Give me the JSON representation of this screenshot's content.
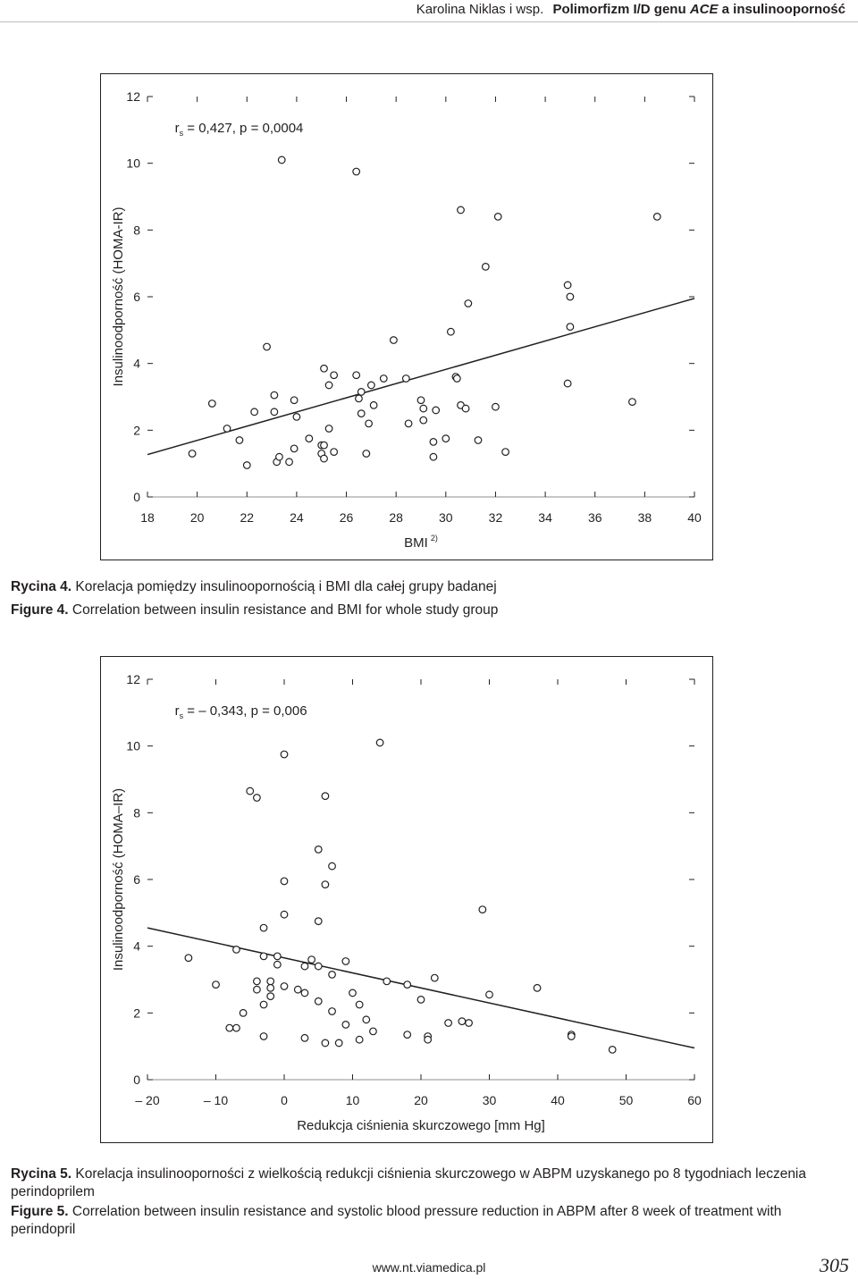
{
  "header": {
    "authors": "Karolina Niklas i wsp.",
    "title_prefix": "Polimorfizm I/D genu",
    "title_gene": "ACE",
    "title_suffix": "a insulinooporność"
  },
  "figure4": {
    "caption_pl_label": "Rycina 4.",
    "caption_pl_text": "Korelacja pomiędzy insulinoopornością i BMI dla całej grupy badanej",
    "caption_en_label": "Figure 4.",
    "caption_en_text": "Correlation between insulin resistance and BMI for whole study group"
  },
  "figure5": {
    "caption_pl_label": "Rycina 5.",
    "caption_pl_text": "Korelacja insulinooporności z wielkością redukcji ciśnienia skurczowego w ABPM uzyskanego po 8 tygodniach leczenia perindoprilem",
    "caption_en_label": "Figure 5.",
    "caption_en_text": "Correlation between insulin resistance and systolic blood pressure reduction in ABPM after 8 week of treatment with perindopril"
  },
  "chart_data": [
    {
      "type": "scatter",
      "annotation": {
        "r": "r",
        "sub": "s",
        "rest": " = 0,427, p = 0,0004"
      },
      "xlabel": "BMI",
      "xlabel_sup": "2)",
      "ylabel": "Insulinoodporność (HOMA-IR)",
      "xlim": [
        18,
        40
      ],
      "ylim": [
        0,
        12
      ],
      "xticks": [
        18,
        20,
        22,
        24,
        26,
        28,
        30,
        32,
        34,
        36,
        38,
        40
      ],
      "xtick_labels": [
        "18",
        "20",
        "22",
        "24",
        "26",
        "28",
        "30",
        "32",
        "34",
        "36",
        "38",
        "40"
      ],
      "yticks": [
        0,
        2,
        4,
        6,
        8,
        10,
        12
      ],
      "ytick_labels": [
        "0",
        "2",
        "4",
        "6",
        "8",
        "10",
        "12"
      ],
      "grid": false,
      "regression_line": {
        "x": [
          18,
          40
        ],
        "y": [
          1.27,
          5.95
        ]
      },
      "points": [
        [
          19.8,
          1.3
        ],
        [
          20.6,
          2.8
        ],
        [
          21.2,
          2.05
        ],
        [
          21.7,
          1.7
        ],
        [
          22.0,
          0.95
        ],
        [
          22.3,
          2.55
        ],
        [
          22.8,
          4.5
        ],
        [
          23.1,
          2.55
        ],
        [
          23.1,
          3.05
        ],
        [
          23.2,
          1.05
        ],
        [
          23.3,
          1.2
        ],
        [
          23.7,
          1.05
        ],
        [
          23.9,
          2.9
        ],
        [
          23.9,
          1.45
        ],
        [
          24.0,
          2.4
        ],
        [
          24.5,
          1.75
        ],
        [
          25.0,
          1.3
        ],
        [
          25.0,
          1.55
        ],
        [
          25.1,
          1.55
        ],
        [
          25.1,
          1.15
        ],
        [
          25.1,
          3.85
        ],
        [
          25.3,
          3.35
        ],
        [
          25.3,
          2.05
        ],
        [
          25.5,
          3.65
        ],
        [
          25.5,
          1.35
        ],
        [
          23.4,
          10.1
        ],
        [
          26.4,
          9.75
        ],
        [
          26.4,
          3.65
        ],
        [
          26.5,
          2.95
        ],
        [
          26.6,
          3.15
        ],
        [
          26.6,
          2.5
        ],
        [
          26.8,
          1.3
        ],
        [
          26.9,
          2.2
        ],
        [
          27.0,
          3.35
        ],
        [
          27.1,
          2.75
        ],
        [
          27.5,
          3.55
        ],
        [
          27.9,
          4.7
        ],
        [
          28.4,
          3.55
        ],
        [
          28.5,
          2.2
        ],
        [
          29.0,
          2.9
        ],
        [
          29.1,
          2.65
        ],
        [
          29.1,
          2.3
        ],
        [
          29.5,
          1.65
        ],
        [
          29.5,
          1.2
        ],
        [
          29.6,
          2.6
        ],
        [
          30.0,
          1.75
        ],
        [
          30.2,
          4.95
        ],
        [
          30.4,
          3.6
        ],
        [
          30.45,
          3.55
        ],
        [
          30.6,
          2.75
        ],
        [
          30.6,
          8.6
        ],
        [
          30.8,
          2.65
        ],
        [
          30.9,
          5.8
        ],
        [
          31.3,
          1.7
        ],
        [
          31.6,
          6.9
        ],
        [
          32.0,
          2.7
        ],
        [
          32.1,
          8.4
        ],
        [
          32.4,
          1.35
        ],
        [
          34.9,
          6.35
        ],
        [
          34.9,
          3.4
        ],
        [
          35.0,
          6.0
        ],
        [
          35.0,
          5.1
        ],
        [
          37.5,
          2.85
        ],
        [
          38.5,
          8.4
        ]
      ]
    },
    {
      "type": "scatter",
      "annotation": {
        "r": "r",
        "sub": "s",
        "rest": " = – 0,343, p = 0,006"
      },
      "xlabel": "Redukcja ciśnienia skurczowego [mm Hg]",
      "ylabel": "Insulinoodporność (HOMA–IR)",
      "xlim": [
        -20,
        60
      ],
      "ylim": [
        0,
        12
      ],
      "xticks": [
        -20,
        -10,
        0,
        10,
        20,
        30,
        40,
        50,
        60
      ],
      "xtick_labels": [
        "– 20",
        "– 10",
        "0",
        "10",
        "20",
        "30",
        "40",
        "50",
        "60"
      ],
      "yticks": [
        0,
        2,
        4,
        6,
        8,
        10,
        12
      ],
      "ytick_labels": [
        "0",
        "2",
        "4",
        "6",
        "8",
        "10",
        "12"
      ],
      "grid": false,
      "regression_line": {
        "x": [
          -20,
          60
        ],
        "y": [
          4.55,
          0.95
        ]
      },
      "points": [
        [
          -14,
          3.65
        ],
        [
          -10,
          2.85
        ],
        [
          -8,
          1.55
        ],
        [
          -7,
          1.55
        ],
        [
          -7,
          3.9
        ],
        [
          -6,
          2.0
        ],
        [
          -5,
          8.65
        ],
        [
          -4,
          8.45
        ],
        [
          -4,
          2.95
        ],
        [
          -4,
          2.7
        ],
        [
          -3,
          4.55
        ],
        [
          -3,
          3.7
        ],
        [
          -3,
          2.25
        ],
        [
          -3,
          1.3
        ],
        [
          -2,
          2.95
        ],
        [
          -2,
          2.75
        ],
        [
          -2,
          2.5
        ],
        [
          -1,
          3.7
        ],
        [
          -1,
          3.45
        ],
        [
          0,
          9.75
        ],
        [
          0,
          5.95
        ],
        [
          0,
          4.95
        ],
        [
          0,
          2.8
        ],
        [
          2,
          2.7
        ],
        [
          3,
          3.4
        ],
        [
          3,
          2.6
        ],
        [
          3,
          1.25
        ],
        [
          4,
          3.6
        ],
        [
          5,
          6.9
        ],
        [
          5,
          4.75
        ],
        [
          5,
          3.4
        ],
        [
          5,
          2.35
        ],
        [
          6,
          8.5
        ],
        [
          6,
          5.85
        ],
        [
          6,
          1.1
        ],
        [
          7,
          6.4
        ],
        [
          7,
          3.15
        ],
        [
          7,
          2.05
        ],
        [
          8,
          1.1
        ],
        [
          9,
          3.55
        ],
        [
          9,
          1.65
        ],
        [
          10,
          2.6
        ],
        [
          11,
          2.25
        ],
        [
          11,
          1.2
        ],
        [
          12,
          1.8
        ],
        [
          13,
          1.45
        ],
        [
          14,
          10.1
        ],
        [
          15,
          2.95
        ],
        [
          18,
          2.85
        ],
        [
          18,
          1.35
        ],
        [
          20,
          2.4
        ],
        [
          21,
          1.3
        ],
        [
          21,
          1.2
        ],
        [
          22,
          3.05
        ],
        [
          24,
          1.7
        ],
        [
          26,
          1.75
        ],
        [
          27,
          1.7
        ],
        [
          29,
          5.1
        ],
        [
          30,
          2.55
        ],
        [
          37,
          2.75
        ],
        [
          42,
          1.35
        ],
        [
          42,
          1.3
        ],
        [
          48,
          0.9
        ]
      ]
    }
  ],
  "footer": {
    "url": "www.nt.viamedica.pl",
    "page_number": "305"
  }
}
